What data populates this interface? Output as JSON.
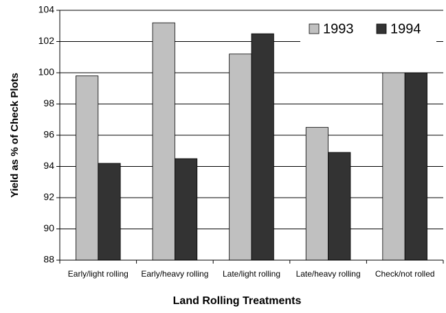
{
  "chart_data": {
    "type": "bar",
    "x_label": "Land Rolling Treatments",
    "y_label": "Yield as % of Check Plots",
    "categories": [
      "Early/light rolling",
      "Early/heavy rolling",
      "Late/light rolling",
      "Late/heavy rolling",
      "Check/not rolled"
    ],
    "series": [
      {
        "name": "1993",
        "color": "#c0c0c0",
        "values": [
          99.8,
          103.2,
          101.2,
          96.5,
          100
        ]
      },
      {
        "name": "1994",
        "color": "#333333",
        "values": [
          94.2,
          94.5,
          102.5,
          94.9,
          100
        ]
      }
    ],
    "ylim": [
      88,
      104
    ],
    "yticks": [
      88,
      90,
      92,
      94,
      96,
      98,
      100,
      102,
      104
    ],
    "grid": true,
    "legend": "top-right"
  }
}
